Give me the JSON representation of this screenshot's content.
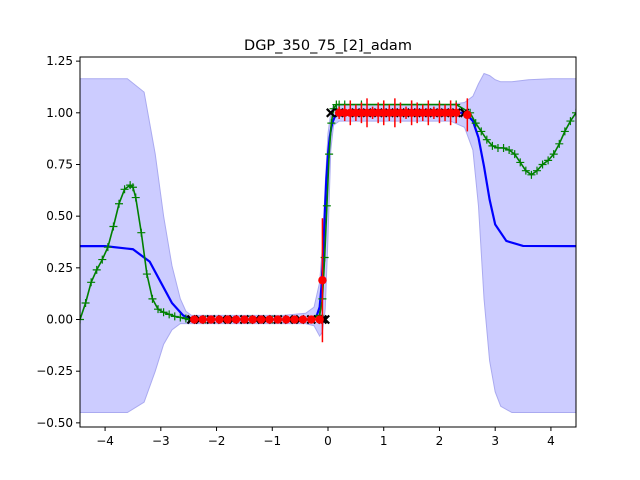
{
  "chart_data": {
    "type": "line",
    "title": "DGP_350_75_[2]_adam",
    "xlabel": "",
    "ylabel": "",
    "xlim": [
      -4.45,
      4.45
    ],
    "ylim": [
      -0.52,
      1.27
    ],
    "x_ticks": [
      -4,
      -3,
      -2,
      -1,
      0,
      1,
      2,
      3,
      4
    ],
    "x_tick_labels": [
      "−4",
      "−3",
      "−2",
      "−1",
      "0",
      "1",
      "2",
      "3",
      "4"
    ],
    "y_ticks": [
      -0.5,
      -0.25,
      0.0,
      0.25,
      0.5,
      0.75,
      1.0,
      1.25
    ],
    "y_tick_labels": [
      "−0.50",
      "−0.25",
      "0.00",
      "0.25",
      "0.50",
      "0.75",
      "1.00",
      "1.25"
    ],
    "grid": false,
    "colors": {
      "mean": "#0000ff",
      "band": "#ccccff",
      "band_edge": "#aaaaf0",
      "samples": "#008000",
      "predictions": "#ff0000",
      "training": "#000000"
    },
    "mean": {
      "x": [
        -4.45,
        -4.0,
        -3.5,
        -3.2,
        -3.0,
        -2.8,
        -2.6,
        -2.45,
        -2.2,
        -1.5,
        -0.8,
        -0.3,
        -0.2,
        -0.15,
        -0.12,
        -0.09,
        -0.06,
        -0.03,
        0.0,
        0.03,
        0.06,
        0.09,
        0.12,
        0.15,
        0.2,
        0.3,
        0.5,
        1.0,
        2.0,
        2.4,
        2.5,
        2.6,
        2.7,
        2.8,
        2.9,
        3.0,
        3.2,
        3.5,
        4.45
      ],
      "y": [
        0.355,
        0.355,
        0.34,
        0.28,
        0.18,
        0.08,
        0.02,
        0.0,
        0.0,
        0.0,
        0.0,
        0.0,
        0.02,
        0.06,
        0.15,
        0.3,
        0.5,
        0.68,
        0.8,
        0.88,
        0.93,
        0.96,
        0.98,
        0.99,
        1.0,
        1.0,
        1.0,
        1.0,
        1.0,
        1.0,
        0.99,
        0.96,
        0.88,
        0.74,
        0.58,
        0.46,
        0.38,
        0.356,
        0.355
      ]
    },
    "band": {
      "x": [
        -4.45,
        -3.6,
        -3.3,
        -3.1,
        -2.95,
        -2.8,
        -2.65,
        -2.55,
        -2.45,
        -2.2,
        -1.5,
        -0.8,
        -0.4,
        -0.25,
        -0.15,
        -0.1,
        -0.05,
        0.0,
        0.05,
        0.1,
        0.2,
        0.3,
        0.6,
        1.5,
        2.2,
        2.45,
        2.6,
        2.7,
        2.8,
        2.9,
        3.0,
        3.1,
        3.3,
        3.6,
        4.0,
        4.45
      ],
      "upper": [
        1.165,
        1.165,
        1.1,
        0.8,
        0.5,
        0.26,
        0.1,
        0.04,
        0.02,
        0.02,
        0.02,
        0.02,
        0.03,
        0.06,
        0.18,
        0.35,
        0.65,
        0.9,
        1.0,
        1.04,
        1.04,
        1.04,
        1.04,
        1.04,
        1.04,
        1.05,
        1.08,
        1.14,
        1.19,
        1.18,
        1.16,
        1.15,
        1.15,
        1.16,
        1.165,
        1.165
      ],
      "lower": [
        -0.45,
        -0.45,
        -0.4,
        -0.25,
        -0.12,
        -0.05,
        -0.02,
        -0.02,
        -0.02,
        -0.02,
        -0.02,
        -0.02,
        -0.02,
        -0.03,
        -0.08,
        -0.06,
        0.05,
        0.4,
        0.82,
        0.94,
        0.96,
        0.96,
        0.96,
        0.96,
        0.96,
        0.93,
        0.82,
        0.55,
        0.1,
        -0.2,
        -0.35,
        -0.42,
        -0.45,
        -0.45,
        -0.45,
        -0.45
      ]
    },
    "samples": {
      "x": [
        -4.45,
        -4.35,
        -4.25,
        -4.15,
        -4.05,
        -3.95,
        -3.85,
        -3.75,
        -3.65,
        -3.55,
        -3.5,
        -3.45,
        -3.35,
        -3.25,
        -3.15,
        -3.05,
        -2.95,
        -2.85,
        -2.75,
        -2.65,
        -2.55,
        -2.5,
        -2.4,
        -2.2,
        -1.8,
        -1.4,
        -1.0,
        -0.6,
        -0.3,
        -0.15,
        -0.1,
        -0.06,
        -0.02,
        0.02,
        0.06,
        0.1,
        0.15,
        0.2,
        0.3,
        0.6,
        1.0,
        1.5,
        2.0,
        2.3,
        2.55,
        2.65,
        2.75,
        2.85,
        2.95,
        3.05,
        3.15,
        3.25,
        3.35,
        3.45,
        3.55,
        3.65,
        3.75,
        3.85,
        3.95,
        4.05,
        4.15,
        4.25,
        4.35,
        4.45
      ],
      "y": [
        0.0,
        0.08,
        0.18,
        0.24,
        0.29,
        0.35,
        0.45,
        0.56,
        0.63,
        0.65,
        0.64,
        0.59,
        0.42,
        0.22,
        0.1,
        0.05,
        0.035,
        0.025,
        0.015,
        0.01,
        0.005,
        0.0,
        0.0,
        0.0,
        0.0,
        0.0,
        0.0,
        0.0,
        0.0,
        0.02,
        0.1,
        0.3,
        0.55,
        0.8,
        0.95,
        1.02,
        1.04,
        1.04,
        1.04,
        1.04,
        1.04,
        1.04,
        1.04,
        1.04,
        1.0,
        0.95,
        0.91,
        0.87,
        0.84,
        0.83,
        0.83,
        0.82,
        0.8,
        0.76,
        0.72,
        0.7,
        0.72,
        0.75,
        0.77,
        0.8,
        0.85,
        0.91,
        0.96,
        1.0
      ]
    },
    "training": {
      "x": [
        -2.45,
        -2.3,
        -2.1,
        -1.9,
        -1.7,
        -1.5,
        -1.3,
        -1.1,
        -0.9,
        -0.7,
        -0.5,
        -0.3,
        -0.1,
        -0.05,
        0.05,
        0.2,
        0.35,
        0.5,
        0.7,
        0.9,
        1.1,
        1.3,
        1.5,
        1.7,
        1.9,
        2.1,
        2.3,
        2.45
      ],
      "y": [
        0,
        0,
        0,
        0,
        0,
        0,
        0,
        0,
        0,
        0,
        0,
        0,
        0,
        0,
        1,
        1,
        1,
        1,
        1,
        1,
        1,
        1,
        1,
        1,
        1,
        1,
        1,
        1
      ]
    },
    "predictions": {
      "x": [
        -2.4,
        -2.25,
        -2.1,
        -1.95,
        -1.8,
        -1.65,
        -1.5,
        -1.35,
        -1.2,
        -1.05,
        -0.9,
        -0.75,
        -0.6,
        -0.45,
        -0.3,
        -0.15,
        -0.1,
        0.2,
        0.3,
        0.4,
        0.5,
        0.6,
        0.7,
        0.8,
        0.9,
        1.0,
        1.1,
        1.2,
        1.3,
        1.4,
        1.5,
        1.6,
        1.7,
        1.8,
        1.9,
        2.0,
        2.1,
        2.2,
        2.3,
        2.5
      ],
      "y": [
        0.0,
        0.0,
        0.0,
        0.0,
        0.0,
        0.0,
        0.0,
        0.0,
        0.0,
        0.0,
        0.0,
        0.0,
        0.0,
        0.0,
        0.0,
        0.0,
        0.19,
        1.0,
        1.0,
        1.0,
        1.0,
        1.0,
        1.0,
        1.0,
        1.0,
        1.0,
        1.0,
        1.0,
        1.0,
        1.0,
        1.0,
        1.0,
        1.0,
        1.0,
        1.0,
        1.0,
        1.0,
        1.0,
        1.0,
        0.99
      ],
      "err": [
        0.01,
        0.01,
        0.01,
        0.01,
        0.01,
        0.01,
        0.01,
        0.01,
        0.01,
        0.01,
        0.01,
        0.01,
        0.01,
        0.01,
        0.01,
        0.02,
        0.3,
        0.03,
        0.04,
        0.06,
        0.04,
        0.05,
        0.07,
        0.03,
        0.05,
        0.06,
        0.04,
        0.07,
        0.05,
        0.03,
        0.06,
        0.05,
        0.04,
        0.06,
        0.03,
        0.05,
        0.04,
        0.06,
        0.05,
        0.08
      ]
    }
  }
}
